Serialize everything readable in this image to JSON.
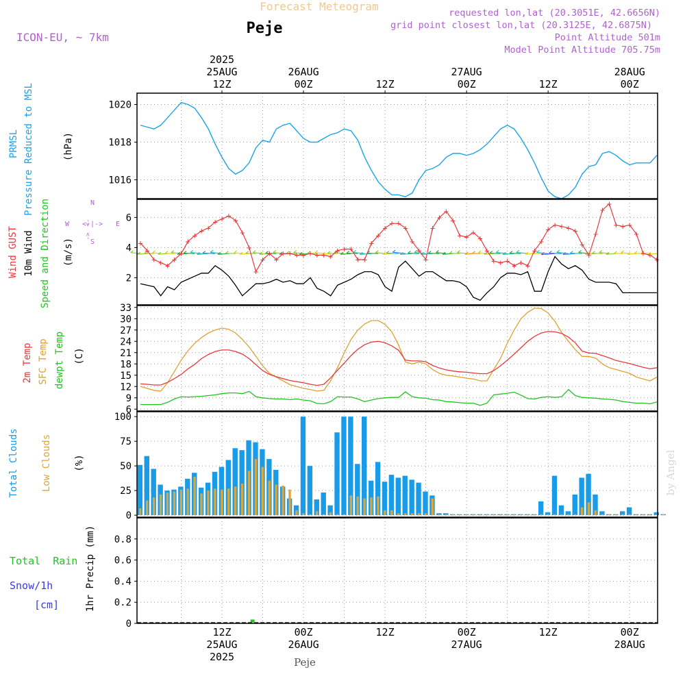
{
  "header": {
    "title_faint": "Forecast Meteogram",
    "station": "Peje",
    "model": "ICON-EU, ~ 7km",
    "requested": "requested lon,lat (20.3051E, 42.6656N)",
    "gridpoint": "grid point closest lon,lat (20.3125E, 42.6875N)",
    "point_alt": "Point Altitude 501m",
    "model_alt": "Model Point Altitude 705.75m",
    "footer_station": "Peje",
    "watermark": "by Angel"
  },
  "time_axis": {
    "top": [
      {
        "t": 12,
        "lines": [
          "2025",
          "25AUG",
          "12Z"
        ]
      },
      {
        "t": 24,
        "lines": [
          "26AUG",
          "00Z"
        ]
      },
      {
        "t": 36,
        "lines": [
          "12Z"
        ]
      },
      {
        "t": 48,
        "lines": [
          "27AUG",
          "00Z"
        ]
      },
      {
        "t": 60,
        "lines": [
          "12Z"
        ]
      },
      {
        "t": 72,
        "lines": [
          "28AUG",
          "00Z"
        ]
      }
    ],
    "bottom": [
      {
        "t": 12,
        "lines": [
          "12Z",
          "25AUG",
          "2025"
        ]
      },
      {
        "t": 24,
        "lines": [
          "00Z",
          "26AUG"
        ]
      },
      {
        "t": 36,
        "lines": [
          "12Z"
        ]
      },
      {
        "t": 48,
        "lines": [
          "00Z",
          "27AUG"
        ]
      },
      {
        "t": 60,
        "lines": [
          "12Z"
        ]
      },
      {
        "t": 72,
        "lines": [
          "00Z",
          "28AUG"
        ]
      }
    ]
  },
  "panel_labels": {
    "prmsl": [
      "PRMSL",
      "Pressure Reduced to MSL"
    ],
    "prmsl_unit": "(hPa)",
    "wind": [
      "Wind GUST",
      "10m Wind",
      "Speed and Direction"
    ],
    "wind_unit": "(m/s)",
    "compass": {
      "n": "N",
      "s": "S",
      "w": "W",
      "e": "E"
    },
    "temp": [
      "2m Temp",
      "SFC Temp",
      "dewpt Temp"
    ],
    "temp_unit": "(C)",
    "clouds": [
      "Total Clouds",
      "Low Clouds"
    ],
    "clouds_unit": "(%)",
    "rain_legend": [
      "Total  Rain",
      "Snow/1h",
      "[cm]"
    ],
    "precip_axis": "1hr Precip (mm)"
  },
  "colors": {
    "pressure": "#1aa3e8",
    "gust": "#e8383c",
    "wind": "#000000",
    "temp2m": "#e8383c",
    "sfc": "#e0a030",
    "dewpt": "#1fc41f",
    "total_clouds": "#1a9be8",
    "low_clouds": "#d8a840",
    "label_purple": "#b060d0",
    "title_faint": "#f0c890"
  },
  "chart_data": [
    {
      "type": "line",
      "name": "PRMSL",
      "ylim": [
        1015,
        1020.6
      ],
      "yticks": [
        1016,
        1018,
        1020
      ],
      "x": [
        0,
        1,
        2,
        3,
        4,
        5,
        6,
        7,
        8,
        9,
        10,
        11,
        12,
        13,
        14,
        15,
        16,
        17,
        18,
        19,
        20,
        21,
        22,
        23,
        24,
        25,
        26,
        27,
        28,
        29,
        30,
        31,
        32,
        33,
        34,
        35,
        36,
        37,
        38,
        39,
        40,
        41,
        42,
        43,
        44,
        45,
        46,
        47,
        48,
        49,
        50,
        51,
        52,
        53,
        54,
        55,
        56,
        57,
        58,
        59,
        60,
        61,
        62,
        63,
        64,
        65,
        66,
        67,
        68,
        69,
        70,
        71,
        72,
        73,
        74,
        75,
        76
      ],
      "values": [
        1018.9,
        1018.8,
        1018.7,
        1018.9,
        1019.3,
        1019.7,
        1020.1,
        1020.0,
        1019.8,
        1019.3,
        1018.7,
        1017.9,
        1017.2,
        1016.6,
        1016.3,
        1016.5,
        1016.9,
        1017.7,
        1018.1,
        1018.0,
        1018.7,
        1018.9,
        1019.0,
        1018.6,
        1018.2,
        1018.0,
        1018.0,
        1018.2,
        1018.4,
        1018.5,
        1018.7,
        1018.6,
        1018.1,
        1017.2,
        1016.5,
        1015.9,
        1015.5,
        1015.2,
        1015.2,
        1015.1,
        1015.3,
        1016.0,
        1016.5,
        1016.6,
        1016.8,
        1017.2,
        1017.4,
        1017.4,
        1017.3,
        1017.4,
        1017.6,
        1017.9,
        1018.3,
        1018.7,
        1018.9,
        1018.7,
        1018.2,
        1017.6,
        1016.9,
        1016.1,
        1015.4,
        1015.1,
        1015.0,
        1015.2,
        1015.6,
        1016.3,
        1016.7,
        1016.8,
        1017.4,
        1017.5,
        1017.3,
        1017.0,
        1016.8,
        1016.9,
        1016.9,
        1016.9,
        1017.3
      ]
    },
    {
      "type": "line",
      "name": "Wind",
      "ylim": [
        0.2,
        7.2
      ],
      "yticks": [
        2,
        4,
        6
      ],
      "gust": [
        4.3,
        3.8,
        3.2,
        3.0,
        2.8,
        3.2,
        3.6,
        4.4,
        4.8,
        5.1,
        5.3,
        5.7,
        5.9,
        6.1,
        5.8,
        5.0,
        4.0,
        2.4,
        3.2,
        3.6,
        3.2,
        3.6,
        3.6,
        3.5,
        3.5,
        3.6,
        3.5,
        3.5,
        3.4,
        3.8,
        3.9,
        3.9,
        3.2,
        3.2,
        4.3,
        4.8,
        5.3,
        5.6,
        5.6,
        5.3,
        4.4,
        3.8,
        3.2,
        5.3,
        6.0,
        6.4,
        5.8,
        4.8,
        4.7,
        5.0,
        4.6,
        3.8,
        3.1,
        3.0,
        3.1,
        2.8,
        3.0,
        2.8,
        3.8,
        4.4,
        5.2,
        5.5,
        5.4,
        5.3,
        5.1,
        4.2,
        3.5,
        4.9,
        6.5,
        6.9,
        5.5,
        5.4,
        5.5,
        4.9,
        3.6,
        3.5,
        3.2
      ],
      "wind": [
        1.6,
        1.5,
        1.4,
        0.8,
        1.4,
        1.2,
        1.7,
        1.9,
        2.1,
        2.3,
        2.3,
        2.8,
        2.5,
        2.1,
        1.5,
        0.8,
        1.2,
        1.6,
        1.6,
        1.7,
        1.9,
        1.7,
        1.8,
        1.6,
        1.6,
        2.0,
        1.3,
        1.1,
        0.8,
        1.5,
        1.7,
        1.9,
        2.2,
        2.4,
        2.4,
        2.2,
        1.4,
        1.1,
        2.7,
        3.1,
        2.6,
        2.1,
        2.4,
        2.4,
        2.1,
        1.8,
        1.8,
        1.7,
        1.4,
        0.7,
        0.5,
        1.0,
        1.4,
        2.0,
        2.3,
        2.3,
        2.2,
        2.4,
        1.1,
        1.1,
        2.4,
        3.4,
        2.9,
        2.6,
        2.8,
        2.5,
        1.9,
        1.7,
        1.7,
        1.7,
        1.6,
        1.0,
        1.0,
        1.0,
        1.0,
        1.0,
        1.0
      ]
    },
    {
      "type": "line",
      "name": "Temperature",
      "ylim": [
        5.5,
        33.5
      ],
      "yticks": [
        6,
        9,
        12,
        15,
        18,
        21,
        24,
        27,
        30,
        33
      ],
      "temp2m": [
        12.7,
        12.6,
        12.4,
        12.4,
        13.1,
        14.1,
        15.2,
        16.7,
        17.9,
        19.4,
        20.5,
        21.3,
        21.7,
        21.7,
        21.3,
        20.6,
        19.4,
        17.8,
        16.2,
        15.2,
        14.6,
        14.1,
        13.6,
        13.3,
        13.0,
        12.6,
        12.3,
        12.6,
        14.3,
        16.3,
        18.2,
        20.2,
        21.9,
        23.1,
        23.8,
        24.0,
        23.6,
        22.8,
        21.6,
        19.0,
        18.8,
        18.8,
        18.6,
        17.6,
        16.9,
        16.4,
        16.1,
        15.9,
        15.8,
        15.6,
        15.4,
        15.4,
        16.2,
        17.5,
        19.0,
        20.6,
        22.3,
        24.0,
        25.3,
        26.2,
        26.6,
        26.5,
        26.1,
        25.1,
        23.6,
        21.4,
        20.9,
        20.8,
        20.2,
        19.6,
        18.9,
        18.5,
        18.1,
        17.6,
        17.1,
        16.7,
        17.0
      ],
      "sfc": [
        12.0,
        11.5,
        11.0,
        10.8,
        13.0,
        16.0,
        19.0,
        21.5,
        23.5,
        25.0,
        26.2,
        27.0,
        27.5,
        27.2,
        26.2,
        24.5,
        22.5,
        20.0,
        17.5,
        15.5,
        14.5,
        13.5,
        12.5,
        12.0,
        11.5,
        11.2,
        10.8,
        11.0,
        13.5,
        17.0,
        21.0,
        24.5,
        27.0,
        28.6,
        29.5,
        29.5,
        28.5,
        26.5,
        23.0,
        18.5,
        18.0,
        18.5,
        18.0,
        16.5,
        15.5,
        15.0,
        14.8,
        14.5,
        14.2,
        14.0,
        13.5,
        13.5,
        16.5,
        19.5,
        23.5,
        27.0,
        30.0,
        31.7,
        32.8,
        32.7,
        31.5,
        29.3,
        26.3,
        24.0,
        21.8,
        20.0,
        20.0,
        19.5,
        18.0,
        17.0,
        16.5,
        16.0,
        15.5,
        14.5,
        14.0,
        13.5,
        14.5
      ],
      "dewpt": [
        7.2,
        7.2,
        7.2,
        7.2,
        7.8,
        8.7,
        9.3,
        9.2,
        9.3,
        9.4,
        9.6,
        9.8,
        10.1,
        10.3,
        10.3,
        10.1,
        10.7,
        9.3,
        9.0,
        8.8,
        8.7,
        8.7,
        8.5,
        8.7,
        8.4,
        8.2,
        7.5,
        7.4,
        8.0,
        9.3,
        9.2,
        9.2,
        8.7,
        8.0,
        8.4,
        8.8,
        9.0,
        9.1,
        9.1,
        10.6,
        9.3,
        9.0,
        8.9,
        8.5,
        8.4,
        8.0,
        7.9,
        7.7,
        7.6,
        7.6,
        7.0,
        7.6,
        9.8,
        10.0,
        10.2,
        10.5,
        9.7,
        8.8,
        8.7,
        9.1,
        9.3,
        9.1,
        9.3,
        11.2,
        9.6,
        9.1,
        9.0,
        8.9,
        8.7,
        8.6,
        8.4,
        8.0,
        7.8,
        7.6,
        7.6,
        7.4,
        7.9
      ]
    },
    {
      "type": "bar",
      "name": "Clouds",
      "ylim": [
        -2,
        105
      ],
      "yticks": [
        0,
        25,
        50,
        75,
        100
      ],
      "total": [
        51,
        60,
        47,
        31,
        25,
        26,
        29,
        37,
        43,
        28,
        33,
        44,
        49,
        56,
        68,
        66,
        76,
        74,
        67,
        57,
        46,
        29,
        17,
        10,
        100,
        50,
        16,
        23,
        10,
        84,
        100,
        100,
        52,
        100,
        35,
        54,
        34,
        41,
        38,
        40,
        36,
        33,
        24,
        20,
        2,
        2,
        1,
        1,
        1,
        1,
        1,
        1,
        1,
        1,
        1,
        1,
        1,
        1,
        1,
        14,
        3,
        40,
        10,
        4,
        21,
        38,
        42,
        21,
        4,
        1,
        1,
        4,
        8,
        1,
        1,
        1,
        3,
        1
      ],
      "low": [
        7,
        15,
        18,
        21,
        23,
        24,
        26,
        27,
        39,
        22,
        25,
        27,
        26,
        27,
        29,
        32,
        45,
        57,
        49,
        35,
        31,
        30,
        26,
        5,
        2,
        1,
        4,
        1,
        3,
        1,
        1,
        20,
        19,
        17,
        18,
        19,
        5,
        5,
        2,
        2,
        2,
        2,
        2,
        17,
        1,
        1,
        1,
        1,
        1,
        1,
        1,
        1,
        1,
        1,
        1,
        1,
        1,
        1,
        1,
        1,
        1,
        1,
        1,
        1,
        1,
        8,
        13,
        5,
        1,
        1,
        1,
        1,
        1,
        1,
        1,
        1,
        1,
        1
      ]
    },
    {
      "type": "bar",
      "name": "Precipitation",
      "ylim": [
        0,
        1.0
      ],
      "yticks": [
        0,
        0.2,
        0.4,
        0.6,
        0.8
      ],
      "ytick_labels": [
        "0",
        "0.2",
        "0.4",
        "0.6",
        "0.8"
      ],
      "precip": [
        {
          "t": 16.5,
          "value": 0.01
        }
      ]
    }
  ]
}
